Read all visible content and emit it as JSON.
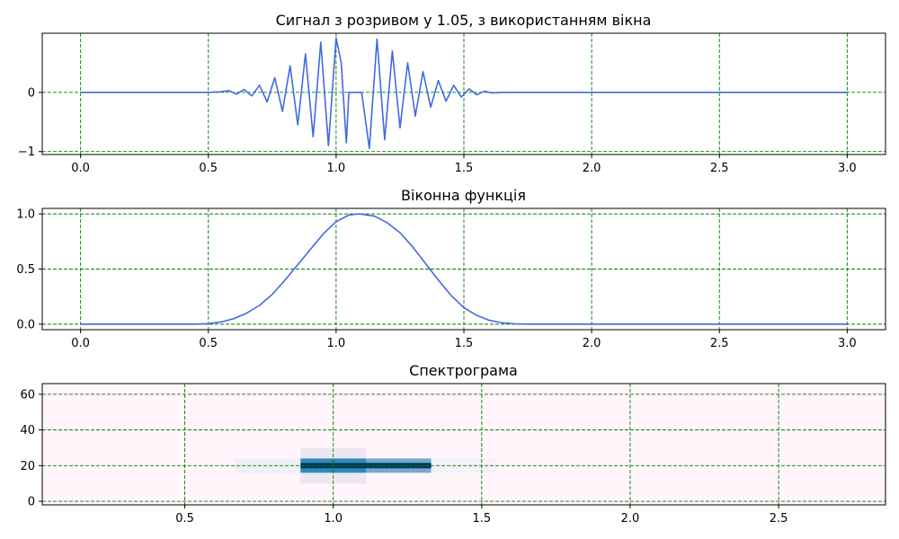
{
  "chart_data": [
    {
      "type": "line",
      "title": "Сигнал з розривом у 1.05, з використанням вікна",
      "xlim": [
        -0.15,
        3.15
      ],
      "ylim": [
        -1.05,
        1.0
      ],
      "xticks": [
        0.0,
        0.5,
        1.0,
        1.5,
        2.0,
        2.5,
        3.0
      ],
      "xtick_labels": [
        "0.0",
        "0.5",
        "1.0",
        "1.5",
        "2.0",
        "2.5",
        "3.0"
      ],
      "yticks": [
        -1,
        0
      ],
      "ytick_labels": [
        "−1",
        "0"
      ],
      "grid": true,
      "grid_color": "#008000",
      "line_color": "#4169e1",
      "series": [
        {
          "x": [
            0.0,
            0.5,
            0.55,
            0.58,
            0.61,
            0.64,
            0.67,
            0.7,
            0.73,
            0.76,
            0.79,
            0.82,
            0.85,
            0.88,
            0.91,
            0.94,
            0.97,
            1.0,
            1.02,
            1.04,
            1.05,
            1.1,
            1.13,
            1.16,
            1.19,
            1.22,
            1.25,
            1.28,
            1.31,
            1.34,
            1.37,
            1.4,
            1.43,
            1.46,
            1.49,
            1.52,
            1.55,
            1.58,
            1.61,
            1.65,
            3.0
          ],
          "y": [
            0.0,
            0.0,
            0.01,
            0.03,
            -0.03,
            0.05,
            -0.06,
            0.12,
            -0.16,
            0.25,
            -0.32,
            0.45,
            -0.55,
            0.65,
            -0.75,
            0.85,
            -0.9,
            0.92,
            0.5,
            -0.85,
            0.0,
            0.0,
            -0.95,
            0.9,
            -0.8,
            0.7,
            -0.6,
            0.5,
            -0.4,
            0.35,
            -0.25,
            0.2,
            -0.15,
            0.12,
            -0.08,
            0.06,
            -0.04,
            0.02,
            -0.01,
            0.0,
            0.0
          ]
        }
      ]
    },
    {
      "type": "line",
      "title": "Віконна функція",
      "xlim": [
        -0.15,
        3.15
      ],
      "ylim": [
        -0.05,
        1.05
      ],
      "xticks": [
        0.0,
        0.5,
        1.0,
        1.5,
        2.0,
        2.5,
        3.0
      ],
      "xtick_labels": [
        "0.0",
        "0.5",
        "1.0",
        "1.5",
        "2.0",
        "2.5",
        "3.0"
      ],
      "yticks": [
        0.0,
        0.5,
        1.0
      ],
      "ytick_labels": [
        "0.0",
        "0.5",
        "1.0"
      ],
      "grid": true,
      "grid_color": "#008000",
      "line_color": "#4169e1",
      "series": [
        {
          "x": [
            0.0,
            0.45,
            0.5,
            0.55,
            0.6,
            0.65,
            0.7,
            0.75,
            0.8,
            0.85,
            0.9,
            0.95,
            1.0,
            1.05,
            1.09,
            1.15,
            1.2,
            1.25,
            1.3,
            1.35,
            1.4,
            1.45,
            1.5,
            1.55,
            1.6,
            1.65,
            1.7,
            1.75,
            3.0
          ],
          "y": [
            0.0,
            0.0,
            0.005,
            0.02,
            0.05,
            0.1,
            0.17,
            0.27,
            0.4,
            0.54,
            0.68,
            0.82,
            0.93,
            0.99,
            1.0,
            0.98,
            0.92,
            0.83,
            0.7,
            0.55,
            0.4,
            0.26,
            0.15,
            0.08,
            0.035,
            0.012,
            0.003,
            0.0,
            0.0
          ]
        }
      ]
    },
    {
      "type": "heatmap",
      "title": "Спектрограма",
      "xlim": [
        0.02,
        2.86
      ],
      "ylim": [
        -2,
        66
      ],
      "xticks": [
        0.5,
        1.0,
        1.5,
        2.0,
        2.5
      ],
      "xtick_labels": [
        "0.5",
        "1.0",
        "1.5",
        "2.0",
        "2.5"
      ],
      "yticks": [
        0,
        20,
        40,
        60
      ],
      "ytick_labels": [
        "0",
        "20",
        "40",
        "60"
      ],
      "grid": true,
      "grid_color": "#008000",
      "background_color": "#fff5fb",
      "cells": [
        {
          "x0": 0.67,
          "x1": 0.89,
          "y0": 16,
          "y1": 24,
          "color": "#f0eef6"
        },
        {
          "x0": 0.89,
          "x1": 1.11,
          "y0": 10,
          "y1": 30,
          "color": "#ece7f2"
        },
        {
          "x0": 0.89,
          "x1": 1.11,
          "y0": 16,
          "y1": 24,
          "color": "#2b8cbe"
        },
        {
          "x0": 1.11,
          "x1": 1.33,
          "y0": 16,
          "y1": 24,
          "color": "#74a9cf"
        },
        {
          "x0": 1.33,
          "x1": 1.55,
          "y0": 16,
          "y1": 24,
          "color": "#f4f1f8"
        },
        {
          "x0": 0.89,
          "x1": 1.33,
          "y0": 18.5,
          "y1": 21.5,
          "color": "#023858"
        }
      ]
    }
  ]
}
